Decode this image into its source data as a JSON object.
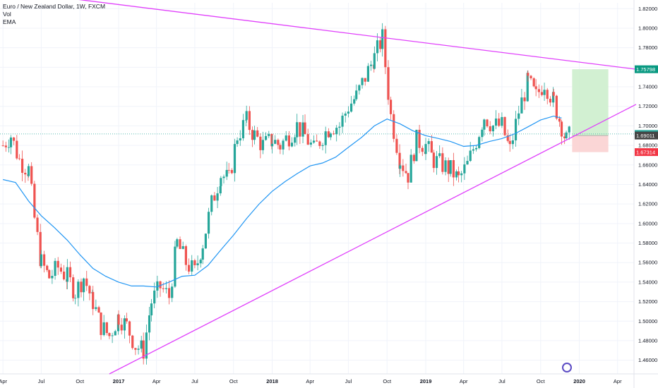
{
  "legend": {
    "title": "Euro / New Zealand Dollar, 1W, FXCM",
    "vol": "Vol",
    "ema": "EMA"
  },
  "chart_data": {
    "type": "candlestick",
    "title": "Euro / New Zealand Dollar, 1W, FXCM",
    "ylim": [
      1.446,
      1.826
    ],
    "y_ticks": [
      1.46,
      1.48,
      1.5,
      1.52,
      1.54,
      1.56,
      1.58,
      1.6,
      1.62,
      1.64,
      1.66,
      1.68,
      1.7,
      1.72,
      1.74,
      1.76,
      1.78,
      1.8,
      1.82
    ],
    "x_ticks": [
      {
        "label": "Apr",
        "date": "2016-04-01",
        "bold": false
      },
      {
        "label": "Jul",
        "date": "2016-07-01",
        "bold": false
      },
      {
        "label": "Oct",
        "date": "2016-10-01",
        "bold": false
      },
      {
        "label": "2017",
        "date": "2017-01-01",
        "bold": true
      },
      {
        "label": "Apr",
        "date": "2017-04-01",
        "bold": false
      },
      {
        "label": "Jul",
        "date": "2017-07-01",
        "bold": false
      },
      {
        "label": "Oct",
        "date": "2017-10-01",
        "bold": false
      },
      {
        "label": "2018",
        "date": "2018-01-01",
        "bold": true
      },
      {
        "label": "Apr",
        "date": "2018-04-01",
        "bold": false
      },
      {
        "label": "Jul",
        "date": "2018-07-01",
        "bold": false
      },
      {
        "label": "Oct",
        "date": "2018-10-01",
        "bold": false
      },
      {
        "label": "2019",
        "date": "2019-01-01",
        "bold": true
      },
      {
        "label": "Apr",
        "date": "2019-04-01",
        "bold": false
      },
      {
        "label": "Jul",
        "date": "2019-07-01",
        "bold": false
      },
      {
        "label": "Oct",
        "date": "2019-10-01",
        "bold": false
      },
      {
        "label": "2020",
        "date": "2020-01-01",
        "bold": true
      },
      {
        "label": "Apr",
        "date": "2020-04-01",
        "bold": false
      }
    ],
    "price_tags": [
      {
        "value": 1.75798,
        "label": "1.75798",
        "color": "#089981"
      },
      {
        "value": 1.6917,
        "label": "1.69170",
        "color": "#26a69a"
      },
      {
        "value": 1.69011,
        "label": "1.69011",
        "color": "#444444"
      },
      {
        "value": 1.67314,
        "label": "1.67314",
        "color": "#f23645"
      }
    ],
    "current_price": 1.6917,
    "trendlines": [
      {
        "name": "upper",
        "color": "#e040fb",
        "points": [
          [
            "2016-06-15",
            1.835
          ],
          [
            "2020-05-15",
            1.758
          ]
        ]
      },
      {
        "name": "lower",
        "color": "#e040fb",
        "points": [
          [
            "2016-12-10",
            1.446
          ],
          [
            "2020-05-15",
            1.722
          ]
        ]
      }
    ],
    "position": {
      "start": "2019-12-15",
      "end": "2020-03-10",
      "entry": 1.69011,
      "target": 1.75798,
      "stop": 1.67314
    },
    "colors": {
      "up": "#26a69a",
      "down": "#ef5350",
      "ema": "#2196f3",
      "grid": "#f0f3fa",
      "target_zone": "#cdeecd",
      "stop_zone": "#fbd1d1"
    },
    "ema": [
      [
        "2016-04-01",
        1.645
      ],
      [
        "2016-05-01",
        1.642
      ],
      [
        "2016-06-01",
        1.623
      ],
      [
        "2016-07-01",
        1.608
      ],
      [
        "2016-08-01",
        1.596
      ],
      [
        "2016-09-01",
        1.583
      ],
      [
        "2016-10-01",
        1.568
      ],
      [
        "2016-11-01",
        1.554
      ],
      [
        "2016-12-01",
        1.546
      ],
      [
        "2017-01-01",
        1.54
      ],
      [
        "2017-02-01",
        1.536
      ],
      [
        "2017-03-01",
        1.536
      ],
      [
        "2017-04-01",
        1.535
      ],
      [
        "2017-05-01",
        1.54
      ],
      [
        "2017-06-01",
        1.546
      ],
      [
        "2017-07-01",
        1.547
      ],
      [
        "2017-08-01",
        1.557
      ],
      [
        "2017-09-01",
        1.573
      ],
      [
        "2017-10-01",
        1.588
      ],
      [
        "2017-11-01",
        1.605
      ],
      [
        "2017-12-01",
        1.62
      ],
      [
        "2018-01-01",
        1.633
      ],
      [
        "2018-02-01",
        1.643
      ],
      [
        "2018-03-01",
        1.651
      ],
      [
        "2018-04-01",
        1.659
      ],
      [
        "2018-05-01",
        1.662
      ],
      [
        "2018-06-01",
        1.668
      ],
      [
        "2018-07-01",
        1.678
      ],
      [
        "2018-08-01",
        1.688
      ],
      [
        "2018-09-01",
        1.7
      ],
      [
        "2018-10-01",
        1.707
      ],
      [
        "2018-11-01",
        1.702
      ],
      [
        "2018-12-01",
        1.695
      ],
      [
        "2019-01-01",
        1.69
      ],
      [
        "2019-02-01",
        1.687
      ],
      [
        "2019-03-01",
        1.684
      ],
      [
        "2019-04-01",
        1.679
      ],
      [
        "2019-05-01",
        1.68
      ],
      [
        "2019-06-01",
        1.684
      ],
      [
        "2019-07-01",
        1.687
      ],
      [
        "2019-08-01",
        1.692
      ],
      [
        "2019-09-01",
        1.699
      ],
      [
        "2019-10-01",
        1.706
      ],
      [
        "2019-11-01",
        1.71
      ],
      [
        "2019-11-20",
        1.708
      ]
    ],
    "candles_monthly_path": [
      [
        "2016-04-01",
        1.68
      ],
      [
        "2016-04-20",
        1.69
      ],
      [
        "2016-05-10",
        1.665
      ],
      [
        "2016-06-01",
        1.655
      ],
      [
        "2016-06-15",
        1.605
      ],
      [
        "2016-07-01",
        1.56
      ],
      [
        "2016-07-20",
        1.545
      ],
      [
        "2016-08-10",
        1.555
      ],
      [
        "2016-09-01",
        1.545
      ],
      [
        "2016-09-20",
        1.53
      ],
      [
        "2016-10-10",
        1.545
      ],
      [
        "2016-11-01",
        1.52
      ],
      [
        "2016-11-20",
        1.495
      ],
      [
        "2016-12-10",
        1.485
      ],
      [
        "2017-01-01",
        1.505
      ],
      [
        "2017-01-20",
        1.495
      ],
      [
        "2017-02-10",
        1.475
      ],
      [
        "2017-03-01",
        1.47
      ],
      [
        "2017-03-20",
        1.52
      ],
      [
        "2017-04-10",
        1.535
      ],
      [
        "2017-05-01",
        1.525
      ],
      [
        "2017-05-20",
        1.58
      ],
      [
        "2017-06-10",
        1.56
      ],
      [
        "2017-07-01",
        1.55
      ],
      [
        "2017-07-20",
        1.58
      ],
      [
        "2017-08-10",
        1.62
      ],
      [
        "2017-09-01",
        1.65
      ],
      [
        "2017-09-20",
        1.645
      ],
      [
        "2017-10-10",
        1.69
      ],
      [
        "2017-11-01",
        1.705
      ],
      [
        "2017-11-20",
        1.69
      ],
      [
        "2017-12-10",
        1.68
      ],
      [
        "2018-01-01",
        1.685
      ],
      [
        "2018-01-20",
        1.68
      ],
      [
        "2018-02-10",
        1.69
      ],
      [
        "2018-03-01",
        1.7
      ],
      [
        "2018-03-20",
        1.69
      ],
      [
        "2018-04-10",
        1.675
      ],
      [
        "2018-05-01",
        1.69
      ],
      [
        "2018-05-20",
        1.7
      ],
      [
        "2018-06-10",
        1.7
      ],
      [
        "2018-07-01",
        1.72
      ],
      [
        "2018-07-20",
        1.73
      ],
      [
        "2018-08-10",
        1.75
      ],
      [
        "2018-09-01",
        1.77
      ],
      [
        "2018-09-20",
        1.79
      ],
      [
        "2018-10-10",
        1.71
      ],
      [
        "2018-11-01",
        1.665
      ],
      [
        "2018-11-20",
        1.65
      ],
      [
        "2018-12-10",
        1.685
      ],
      [
        "2019-01-01",
        1.68
      ],
      [
        "2019-01-20",
        1.665
      ],
      [
        "2019-02-10",
        1.66
      ],
      [
        "2019-03-01",
        1.655
      ],
      [
        "2019-03-20",
        1.645
      ],
      [
        "2019-04-10",
        1.66
      ],
      [
        "2019-05-01",
        1.685
      ],
      [
        "2019-05-20",
        1.71
      ],
      [
        "2019-06-10",
        1.7
      ],
      [
        "2019-07-01",
        1.7
      ],
      [
        "2019-07-20",
        1.675
      ],
      [
        "2019-08-10",
        1.715
      ],
      [
        "2019-09-01",
        1.745
      ],
      [
        "2019-09-20",
        1.73
      ],
      [
        "2019-10-10",
        1.745
      ],
      [
        "2019-11-01",
        1.725
      ],
      [
        "2019-11-20",
        1.7
      ],
      [
        "2019-12-01",
        1.685
      ],
      [
        "2019-12-10",
        1.69
      ]
    ]
  }
}
